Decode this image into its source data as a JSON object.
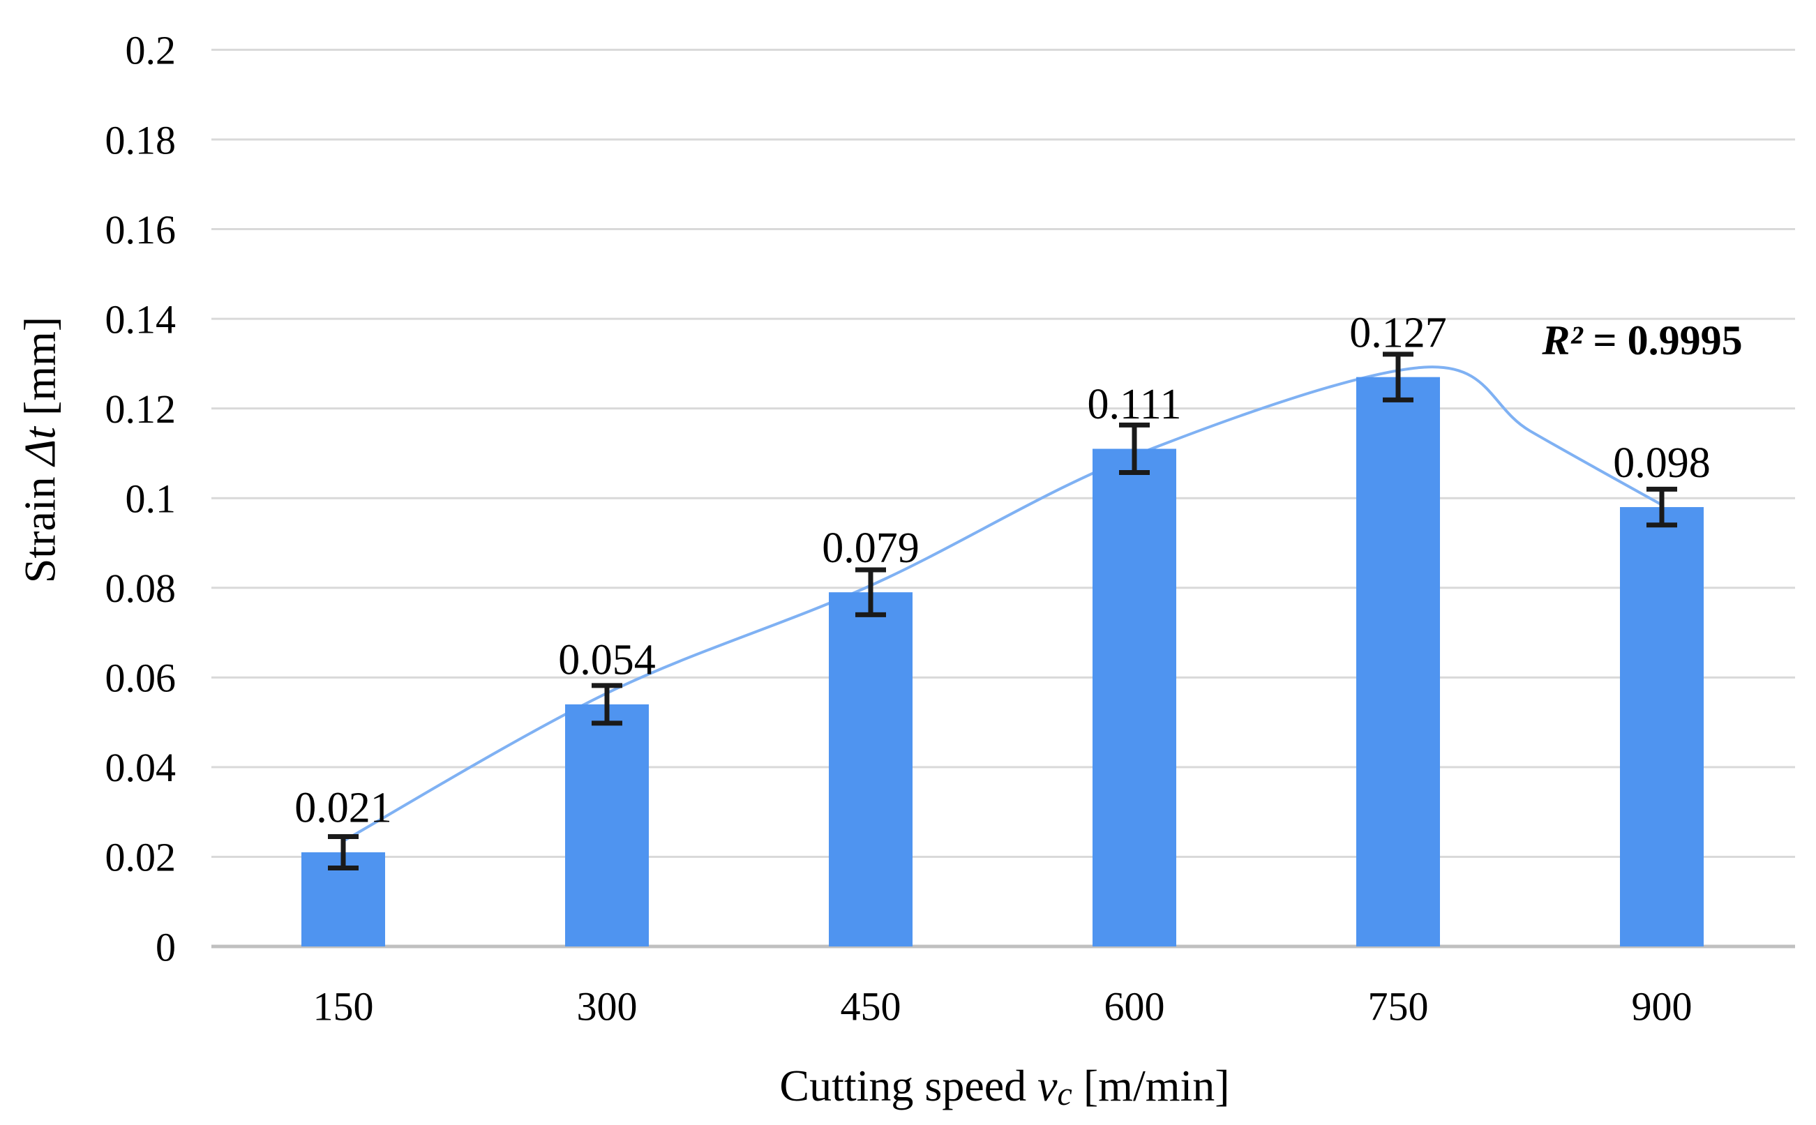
{
  "chart_data": {
    "type": "bar",
    "title": "",
    "categories": [
      "150",
      "300",
      "450",
      "600",
      "750",
      "900"
    ],
    "values": [
      0.021,
      0.054,
      0.079,
      0.111,
      0.127,
      0.098
    ],
    "data_labels": [
      "0.021",
      "0.054",
      "0.079",
      "0.111",
      "0.127",
      "0.098"
    ],
    "error_bars": [
      0.0035,
      0.0042,
      0.005,
      0.0053,
      0.0051,
      0.004
    ],
    "xlabel": "Cutting speed vc [m/min]",
    "xlabel_parts": {
      "prefix": "Cutting speed ",
      "italic": "v",
      "subscript": "c",
      "suffix": " [m/min]"
    },
    "ylabel": "Strain Δt [mm]",
    "ylabel_parts": {
      "prefix": "Strain ",
      "italic": "Δt",
      "suffix": " [mm]"
    },
    "ylim": [
      0,
      0.2
    ],
    "ytick_step": 0.02,
    "y_tick_labels": [
      "0",
      "0.02",
      "0.04",
      "0.06",
      "0.08",
      "0.1",
      "0.12",
      "0.14",
      "0.16",
      "0.18",
      "0.2"
    ],
    "grid": true,
    "legend": false,
    "trendline": {
      "type": "polynomial",
      "r2_prefix": "R²",
      "r2_rest": " = 0.9995",
      "r2_value": 0.9995,
      "points": [
        [
          1.0,
          0.0235
        ],
        [
          2.0,
          0.0565
        ],
        [
          3.0,
          0.0805
        ],
        [
          4.0,
          0.1095
        ],
        [
          5.1,
          0.1292
        ],
        [
          5.5,
          0.115
        ],
        [
          6.0,
          0.0985
        ]
      ]
    },
    "colors": {
      "bar": "#4f94f0",
      "trend": "#7fb1f3",
      "grid": "#d9d9d9",
      "baseline": "#c0c0c0",
      "error": "#1a1a1a",
      "text": "#000000",
      "background": "#ffffff"
    }
  }
}
